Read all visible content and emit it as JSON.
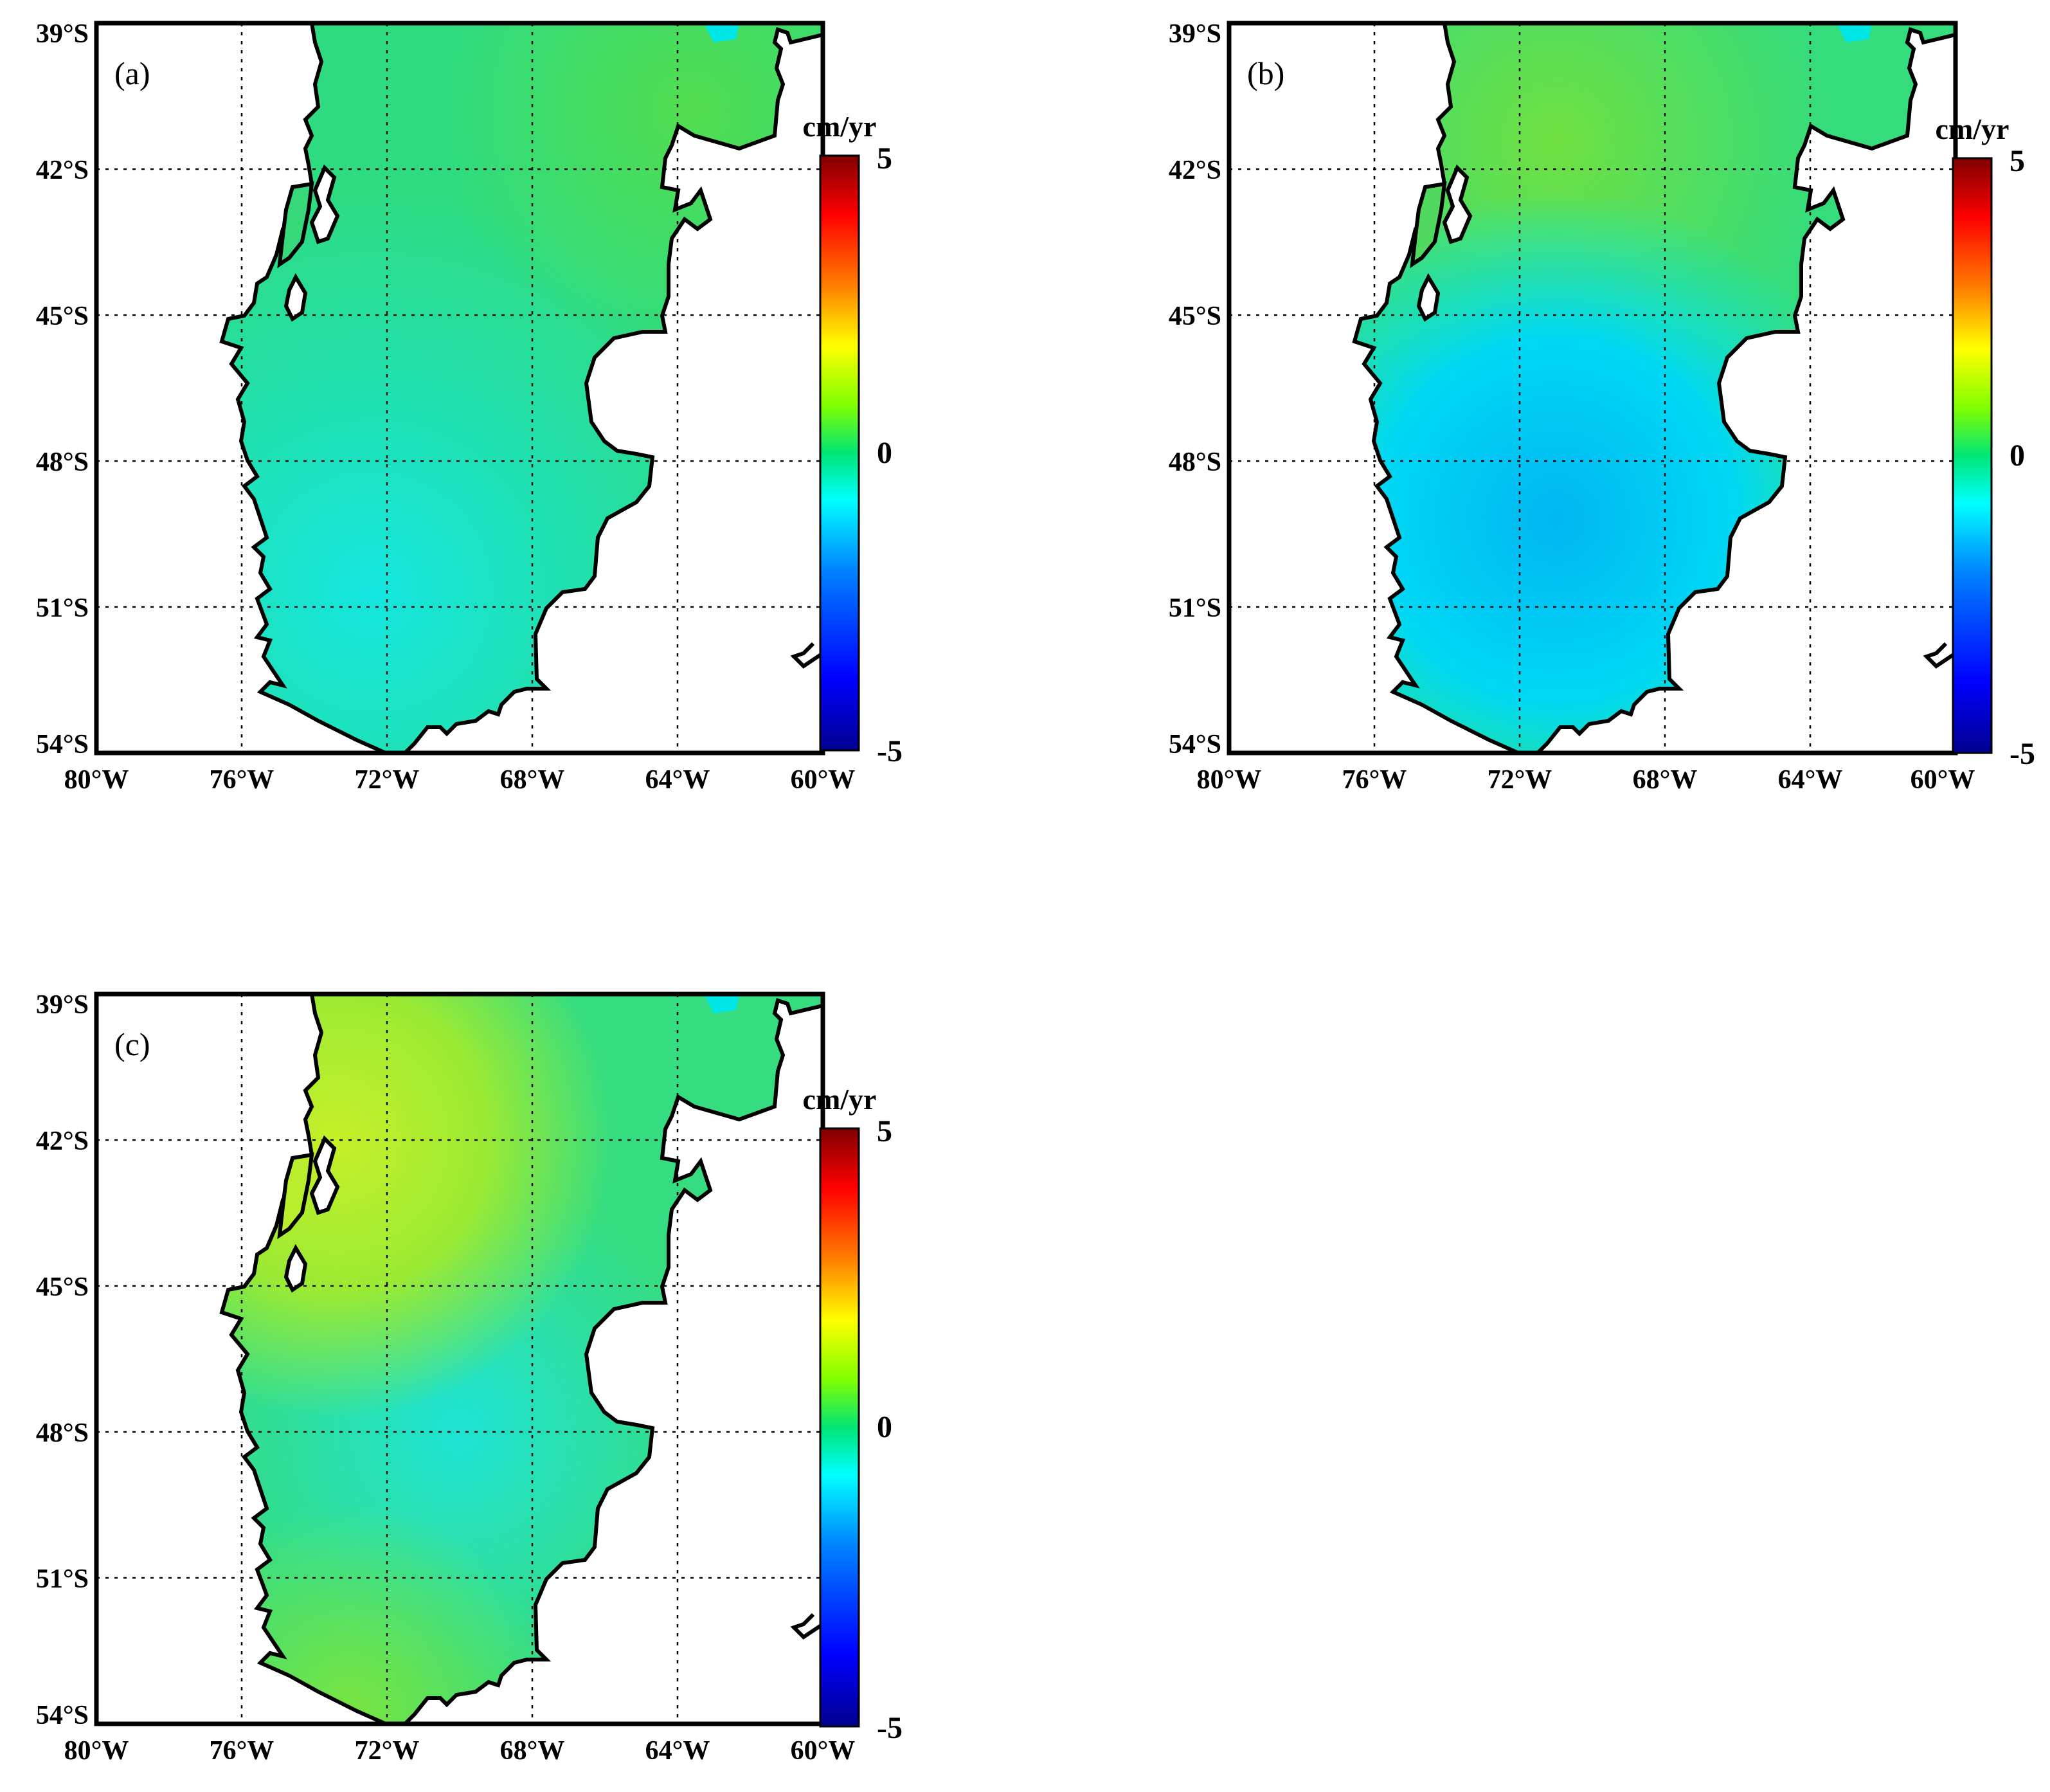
{
  "figure": {
    "panels": [
      {
        "label": "(a)",
        "lat_labels": [
          "39°S",
          "42°S",
          "45°S",
          "48°S",
          "51°S",
          "54°S"
        ],
        "lon_labels": [
          "80°W",
          "76°W",
          "72°W",
          "68°W",
          "64°W",
          "60°W"
        ],
        "colorbar": {
          "title": "cm/yr",
          "max_label": "5",
          "mid_label": "0",
          "min_label": "-5"
        }
      },
      {
        "label": "(b)",
        "lat_labels": [
          "39°S",
          "42°S",
          "45°S",
          "48°S",
          "51°S",
          "54°S"
        ],
        "lon_labels": [
          "80°W",
          "76°W",
          "72°W",
          "68°W",
          "64°W",
          "60°W"
        ],
        "colorbar": {
          "title": "cm/yr",
          "max_label": "5",
          "mid_label": "0",
          "min_label": "-5"
        }
      },
      {
        "label": "(c)",
        "lat_labels": [
          "39°S",
          "42°S",
          "45°S",
          "48°S",
          "51°S",
          "54°S"
        ],
        "lon_labels": [
          "80°W",
          "76°W",
          "72°W",
          "68°W",
          "64°W",
          "60°W"
        ],
        "colorbar": {
          "title": "cm/yr",
          "max_label": "5",
          "mid_label": "0",
          "min_label": "-5"
        }
      }
    ]
  },
  "map_extent": {
    "lon_min": -80,
    "lon_max": -60,
    "lat_min": -54,
    "lat_max": -39
  },
  "colorscale": {
    "name": "jet",
    "range": [
      -5,
      5
    ],
    "stops": [
      "#00008f",
      "#0000ff",
      "#0080ff",
      "#00ffff",
      "#00e676",
      "#80ff00",
      "#ffff00",
      "#ff8000",
      "#ff0000",
      "#800000"
    ]
  },
  "fields": {
    "panel_a": {
      "north_rate": "#2bd86a",
      "central_rate": "#1fe0a8",
      "south_rate": "#2fe59a",
      "peak_rate": "#4adf55"
    },
    "panel_b": {
      "north_rate": "#56d94c",
      "central_rate": "#19c8f0",
      "south_rate": "#2fde96",
      "peak_rate": "#60e046"
    },
    "panel_c": {
      "north_rate": "#b2ee2a",
      "central_rate": "#20e6b8",
      "south_rate": "#5ae04c",
      "peak_rate": "#c6f028"
    }
  }
}
